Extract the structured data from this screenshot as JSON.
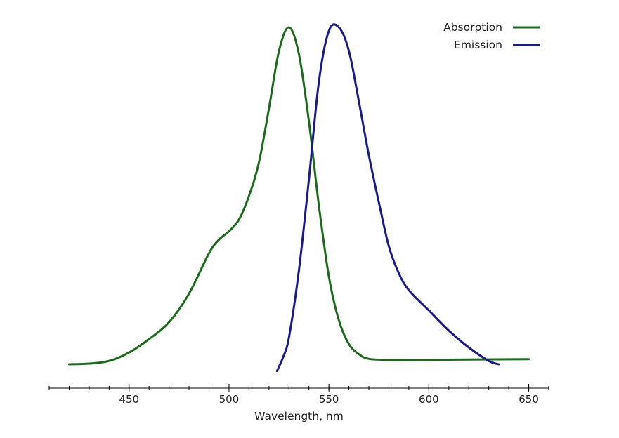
{
  "chart_data": {
    "type": "line",
    "title": "",
    "xlabel": "Wavelength, nm",
    "ylabel": "",
    "xlim": [
      410,
      660
    ],
    "ylim": [
      -0.05,
      1.0
    ],
    "x_ticks": [
      450,
      500,
      550,
      600,
      650
    ],
    "x_tick_labels": [
      "450",
      "500",
      "550",
      "600",
      "650"
    ],
    "x_minor_step": 10,
    "grid": false,
    "legend_position": "top-right",
    "series": [
      {
        "name": "Absorption",
        "color": "#1a6b1a",
        "x": [
          420,
          430,
          440,
          450,
          460,
          470,
          480,
          490,
          495,
          500,
          505,
          510,
          515,
          520,
          525,
          530,
          535,
          540,
          545,
          550,
          555,
          560,
          565,
          570,
          580,
          590,
          600,
          620,
          650
        ],
        "y": [
          0.0,
          0.002,
          0.01,
          0.035,
          0.075,
          0.125,
          0.21,
          0.33,
          0.37,
          0.395,
          0.43,
          0.5,
          0.6,
          0.76,
          0.93,
          1.0,
          0.92,
          0.72,
          0.47,
          0.26,
          0.13,
          0.06,
          0.03,
          0.016,
          0.013,
          0.013,
          0.013,
          0.014,
          0.015
        ]
      },
      {
        "name": "Emission",
        "color": "#1a1a8c",
        "x": [
          524,
          527,
          530,
          535,
          540,
          545,
          550,
          555,
          560,
          565,
          570,
          575,
          580,
          585,
          590,
          600,
          610,
          620,
          630,
          635
        ],
        "y": [
          -0.02,
          0.02,
          0.08,
          0.28,
          0.55,
          0.84,
          0.99,
          1.0,
          0.93,
          0.78,
          0.62,
          0.48,
          0.35,
          0.27,
          0.22,
          0.16,
          0.1,
          0.05,
          0.01,
          0.0
        ]
      }
    ]
  }
}
